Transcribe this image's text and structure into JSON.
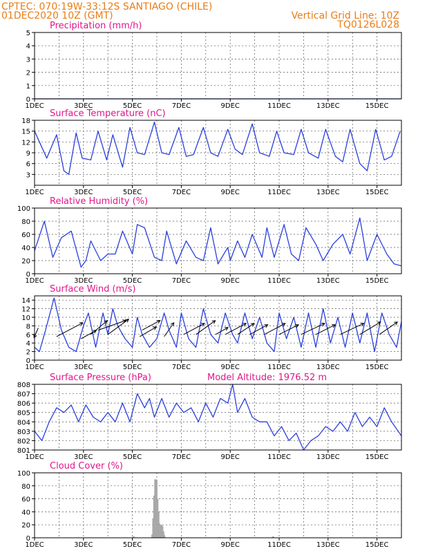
{
  "header": {
    "line1": "CPTEC:   070:19W-33:12S  SANTIAGO (CHILE)",
    "line2": "01DEC2020 10Z (GMT)",
    "grid_note": "Vertical Grid Line: 10Z",
    "model": "TQ0126L028"
  },
  "colors": {
    "header": "#e87d17",
    "title": "#e0168c",
    "line": "#2a3fdd",
    "bar": "#a8a8a8",
    "grid": "#555555"
  },
  "chart_data": [
    {
      "id": "precip",
      "type": "line",
      "title": "Precipitation (mm/h)",
      "ylim": [
        0,
        5
      ],
      "yticks": [
        0,
        1,
        2,
        3,
        4,
        5
      ],
      "x": [
        1,
        16
      ],
      "values": [
        0,
        0
      ]
    },
    {
      "id": "temp",
      "type": "line",
      "title": "Surface Temperature (nC)",
      "ylim": [
        0,
        18
      ],
      "yticks": [
        3,
        6,
        9,
        12,
        15,
        18
      ],
      "x": [
        1.0,
        1.5,
        1.9,
        2.2,
        2.4,
        2.7,
        2.95,
        3.3,
        3.6,
        3.95,
        4.2,
        4.6,
        4.9,
        5.2,
        5.5,
        5.9,
        6.2,
        6.5,
        6.9,
        7.2,
        7.5,
        7.9,
        8.2,
        8.5,
        8.9,
        9.2,
        9.5,
        9.9,
        10.2,
        10.6,
        10.9,
        11.2,
        11.6,
        11.9,
        12.2,
        12.6,
        12.9,
        13.3,
        13.6,
        13.9,
        14.3,
        14.6,
        14.95,
        15.3,
        15.6,
        15.95
      ],
      "values": [
        15,
        7.5,
        14,
        4,
        3,
        14.5,
        7.5,
        7,
        15,
        7,
        14,
        5,
        16,
        9,
        8.5,
        17.5,
        9,
        8.5,
        16,
        8,
        8.5,
        16,
        9,
        8,
        15.5,
        10,
        8.5,
        17,
        9,
        8,
        15,
        9,
        8.5,
        15.5,
        9,
        7.5,
        15.5,
        8,
        6.5,
        15.5,
        6,
        4,
        15.5,
        7,
        8,
        15
      ]
    },
    {
      "id": "rh",
      "type": "line",
      "title": "Relative Humidity (%)",
      "ylim": [
        0,
        100
      ],
      "yticks": [
        0,
        20,
        40,
        60,
        80,
        100
      ],
      "x": [
        1.0,
        1.4,
        1.75,
        2.1,
        2.5,
        2.9,
        3.1,
        3.3,
        3.7,
        4.0,
        4.3,
        4.6,
        5.0,
        5.2,
        5.5,
        5.9,
        6.2,
        6.4,
        6.8,
        7.2,
        7.6,
        7.9,
        8.2,
        8.5,
        8.9,
        9.0,
        9.3,
        9.6,
        9.9,
        10.3,
        10.5,
        10.8,
        11.2,
        11.5,
        11.8,
        12.1,
        12.5,
        12.8,
        13.2,
        13.6,
        13.9,
        14.3,
        14.6,
        15.0,
        15.4,
        15.7,
        16.0
      ],
      "values": [
        35,
        80,
        25,
        55,
        65,
        10,
        20,
        50,
        20,
        30,
        30,
        65,
        30,
        75,
        70,
        25,
        20,
        65,
        15,
        50,
        25,
        20,
        70,
        15,
        40,
        20,
        50,
        25,
        60,
        25,
        70,
        25,
        75,
        30,
        20,
        70,
        45,
        20,
        45,
        60,
        30,
        85,
        20,
        60,
        30,
        15,
        12
      ]
    },
    {
      "id": "wind",
      "type": "line",
      "title": "Surface Wind (m/s)",
      "ylim": [
        0,
        15
      ],
      "yticks": [
        0,
        2,
        4,
        6,
        8,
        10,
        12,
        14
      ],
      "x": [
        1.0,
        1.2,
        1.45,
        1.8,
        2.1,
        2.4,
        2.7,
        3.0,
        3.2,
        3.5,
        3.8,
        4.0,
        4.2,
        4.4,
        4.7,
        5.0,
        5.2,
        5.4,
        5.7,
        6.0,
        6.3,
        6.5,
        6.8,
        7.0,
        7.3,
        7.6,
        7.9,
        8.2,
        8.5,
        8.8,
        9.1,
        9.3,
        9.6,
        9.9,
        10.2,
        10.5,
        10.8,
        11.0,
        11.3,
        11.6,
        11.9,
        12.2,
        12.5,
        12.8,
        13.1,
        13.4,
        13.7,
        14.0,
        14.3,
        14.6,
        14.9,
        15.2,
        15.5,
        15.8,
        16.0
      ],
      "values": [
        3,
        2,
        7,
        14.5,
        7,
        3,
        2,
        8,
        11,
        3,
        11,
        6,
        12,
        8,
        5,
        3,
        10,
        6,
        3,
        5,
        11,
        7,
        3,
        11,
        5,
        3,
        12,
        6,
        4,
        11,
        6,
        4,
        11,
        5,
        10,
        4,
        2,
        11,
        5,
        10,
        3,
        11,
        3,
        12,
        4,
        10,
        3,
        11,
        4,
        11,
        2,
        11,
        6,
        3,
        9
      ],
      "arrows": [
        {
          "day": 1.15,
          "v": 7.5,
          "dx": -6,
          "dy": 14
        },
        {
          "day": 1.9,
          "v": 5.5,
          "dx": 38,
          "dy": -20
        },
        {
          "day": 2.9,
          "v": 5,
          "dx": 22,
          "dy": -12
        },
        {
          "day": 3.3,
          "v": 6,
          "dx": 24,
          "dy": -20
        },
        {
          "day": 3.6,
          "v": 7,
          "dx": 40,
          "dy": -14
        },
        {
          "day": 4.0,
          "v": 6,
          "dx": 30,
          "dy": -22
        },
        {
          "day": 5.3,
          "v": 5.5,
          "dx": 24,
          "dy": -14
        },
        {
          "day": 5.4,
          "v": 7,
          "dx": 26,
          "dy": -14
        },
        {
          "day": 6.3,
          "v": 5.5,
          "dx": 14,
          "dy": -20
        },
        {
          "day": 7.1,
          "v": 6,
          "dx": 30,
          "dy": -16
        },
        {
          "day": 7.6,
          "v": 6,
          "dx": 28,
          "dy": -20
        },
        {
          "day": 8.4,
          "v": 6,
          "dx": 18,
          "dy": -10
        },
        {
          "day": 8.8,
          "v": 6,
          "dx": 30,
          "dy": -16
        },
        {
          "day": 9.3,
          "v": 6,
          "dx": 24,
          "dy": -16
        },
        {
          "day": 9.8,
          "v": 6,
          "dx": 26,
          "dy": -14
        },
        {
          "day": 10.4,
          "v": 6,
          "dx": 30,
          "dy": -16
        },
        {
          "day": 11.0,
          "v": 6,
          "dx": 28,
          "dy": -14
        },
        {
          "day": 11.9,
          "v": 6,
          "dx": 34,
          "dy": -16
        },
        {
          "day": 12.5,
          "v": 6,
          "dx": 28,
          "dy": -14
        },
        {
          "day": 13.5,
          "v": 6,
          "dx": 34,
          "dy": -16
        },
        {
          "day": 14.3,
          "v": 6,
          "dx": 30,
          "dy": -18
        },
        {
          "day": 15.1,
          "v": 6,
          "dx": 26,
          "dy": -18
        }
      ]
    },
    {
      "id": "pres",
      "type": "line",
      "title": "Surface Pressure (hPa)",
      "annotation": "Model Altitude: 1976.52  m",
      "ylim": [
        801,
        808
      ],
      "yticks": [
        801,
        802,
        803,
        804,
        805,
        806,
        807,
        808
      ],
      "x": [
        1.0,
        1.3,
        1.6,
        1.9,
        2.2,
        2.5,
        2.8,
        3.1,
        3.4,
        3.7,
        4.0,
        4.3,
        4.6,
        4.9,
        5.2,
        5.5,
        5.7,
        5.9,
        6.2,
        6.5,
        6.8,
        7.1,
        7.4,
        7.7,
        8.0,
        8.3,
        8.6,
        8.9,
        9.1,
        9.3,
        9.6,
        9.9,
        10.2,
        10.5,
        10.8,
        11.1,
        11.4,
        11.7,
        12.0,
        12.3,
        12.6,
        12.9,
        13.2,
        13.5,
        13.8,
        14.1,
        14.4,
        14.7,
        15.0,
        15.3,
        15.6,
        16.0
      ],
      "values": [
        803,
        802,
        804,
        805.5,
        805,
        805.8,
        804,
        805.8,
        804.5,
        804,
        805,
        804,
        806,
        804,
        807,
        805.5,
        806.5,
        804.5,
        806.5,
        804.5,
        806,
        805,
        805.5,
        804,
        806,
        804.5,
        806.5,
        806,
        808,
        805,
        806.5,
        804.5,
        804,
        804,
        802.5,
        803.5,
        802,
        802.8,
        801,
        802,
        802.5,
        803.5,
        803,
        804,
        803,
        805,
        803.5,
        804.5,
        803.5,
        805.5,
        804,
        802.5
      ]
    },
    {
      "id": "cloud",
      "type": "bar",
      "title": "Cloud Cover (%)",
      "ylim": [
        0,
        100
      ],
      "yticks": [
        0,
        20,
        40,
        60,
        80,
        100
      ],
      "x": [
        5.05,
        5.82,
        5.86,
        5.9,
        5.94,
        5.98,
        6.02,
        6.06,
        6.1,
        6.14,
        6.18,
        6.22,
        6.26,
        6.3,
        8.55,
        10.75
      ],
      "values": [
        2,
        5,
        30,
        65,
        90,
        88,
        60,
        40,
        22,
        15,
        20,
        18,
        10,
        4,
        1,
        2
      ]
    }
  ],
  "x_axis": {
    "range": [
      1,
      16
    ],
    "tick_days": [
      1,
      3,
      5,
      7,
      9,
      11,
      13,
      15
    ],
    "tick_labels": [
      "1DEC",
      "3DEC",
      "5DEC",
      "7DEC",
      "9DEC",
      "11DEC",
      "13DEC",
      "15DEC"
    ]
  }
}
